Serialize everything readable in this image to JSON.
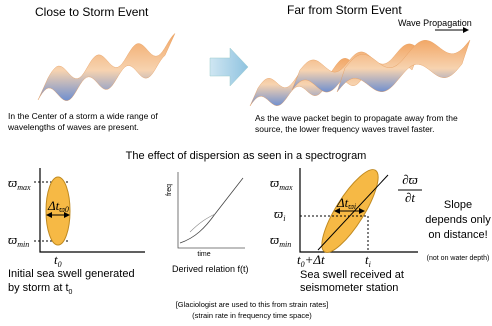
{
  "top": {
    "left_title": "Close to Storm Event",
    "right_title": "Far from Storm Event",
    "wave_label": "Wave Propagation",
    "left_caption": [
      "In the Center of a storm a wide range of",
      "wavelengths of waves are present."
    ],
    "right_caption": [
      "As the wave packet begin to propagate away from the",
      "source, the lower frequency waves travel faster."
    ]
  },
  "section_title": "The effect of dispersion as seen in a spectrogram",
  "panel1": {
    "omega_max": "ϖ",
    "max": "max",
    "omega_min": "ϖ",
    "min": "min",
    "dt": "Δt",
    "dt_sub": "ϖ0",
    "t": "t",
    "t_sub": "0",
    "caption": [
      "Initial sea swell generated",
      "by storm at t"
    ],
    "caption_sub": "0"
  },
  "panel2": {
    "y_label": "freq",
    "x_label": "time",
    "caption": "Derived relation f(t)"
  },
  "panel3": {
    "omega_max": "ϖ",
    "max": "max",
    "omega_i": "ϖ",
    "i": "i",
    "omega_min": "ϖ",
    "min": "min",
    "dt": "Δt",
    "dt_sub": "ϖi",
    "t0": "t",
    "t0_sub": "0",
    "t0_plus": "+Δt",
    "ti": "t",
    "ti_sub": "i",
    "slope_num": "∂ϖ",
    "slope_den": "∂t",
    "caption": [
      "Sea swell received at",
      "seismometer station"
    ]
  },
  "slope_note": {
    "lines": [
      "Slope",
      "depends only",
      "on distance!"
    ],
    "note": "(not on water depth)"
  },
  "footer": [
    "[Glaciologist are used to this from strain rates]",
    "(strain rate in frequency time space)"
  ]
}
